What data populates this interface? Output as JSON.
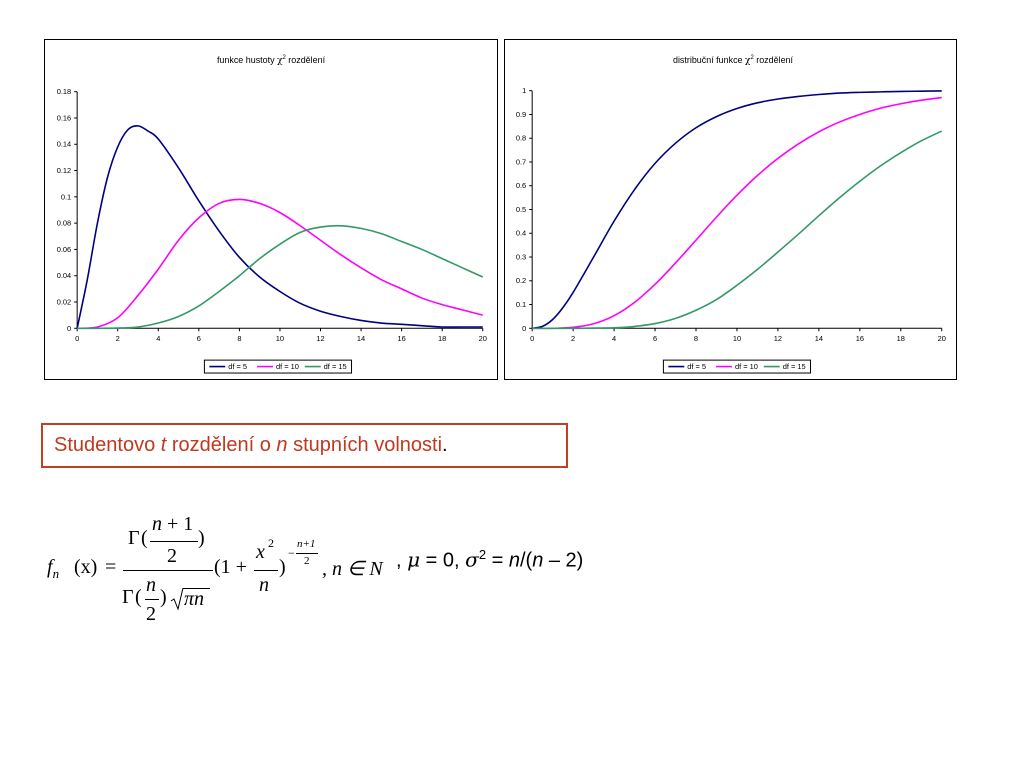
{
  "chart_data": [
    {
      "type": "line",
      "title": "funkce hustoty χ² rozdělení",
      "title_parts": [
        "funkce hustoty ",
        "χ",
        "2",
        " rozdělení"
      ],
      "xlim": [
        0,
        20
      ],
      "ylim": [
        0,
        0.18
      ],
      "xticks": [
        "0",
        "2",
        "4",
        "6",
        "8",
        "10",
        "12",
        "14",
        "16",
        "18",
        "20"
      ],
      "yticks": [
        "0",
        "0.02",
        "0.04",
        "0.06",
        "0.08",
        "0.1",
        "0.12",
        "0.14",
        "0.16",
        "0.18"
      ],
      "legend_position": "bottom",
      "series": [
        {
          "name": "df = 5",
          "color": "#000080",
          "x": [
            0,
            0.5,
            1,
            1.5,
            2,
            2.5,
            3,
            3.5,
            4,
            5,
            6,
            7,
            8,
            9,
            10,
            11,
            12,
            13,
            14,
            15,
            16,
            17,
            18,
            19,
            20
          ],
          "values": [
            0,
            0.037,
            0.08,
            0.115,
            0.138,
            0.151,
            0.154,
            0.15,
            0.144,
            0.122,
            0.097,
            0.074,
            0.054,
            0.039,
            0.028,
            0.019,
            0.013,
            0.009,
            0.006,
            0.004,
            0.003,
            0.002,
            0.001,
            0.001,
            0.001
          ]
        },
        {
          "name": "df = 10",
          "color": "#ff00ff",
          "x": [
            0,
            1,
            2,
            3,
            4,
            5,
            6,
            7,
            8,
            9,
            10,
            11,
            12,
            13,
            14,
            15,
            16,
            17,
            18,
            19,
            20
          ],
          "values": [
            0,
            0.001,
            0.008,
            0.025,
            0.045,
            0.067,
            0.084,
            0.095,
            0.098,
            0.095,
            0.088,
            0.078,
            0.067,
            0.056,
            0.046,
            0.037,
            0.03,
            0.023,
            0.018,
            0.014,
            0.01
          ]
        },
        {
          "name": "df = 15",
          "color": "#339966",
          "x": [
            0,
            2,
            3,
            4,
            5,
            6,
            7,
            8,
            9,
            10,
            11,
            12,
            13,
            14,
            15,
            16,
            17,
            18,
            19,
            20
          ],
          "values": [
            0,
            0.0002,
            0.001,
            0.004,
            0.009,
            0.017,
            0.028,
            0.04,
            0.053,
            0.064,
            0.073,
            0.077,
            0.078,
            0.076,
            0.072,
            0.066,
            0.06,
            0.053,
            0.046,
            0.039
          ]
        }
      ]
    },
    {
      "type": "line",
      "title": "distribuční funkce χ² rozdělení",
      "title_parts": [
        "distribuční funkce ",
        "χ",
        "2",
        " rozdělení"
      ],
      "xlim": [
        0,
        20
      ],
      "ylim": [
        0,
        1
      ],
      "xticks": [
        "0",
        "2",
        "4",
        "6",
        "8",
        "10",
        "12",
        "14",
        "16",
        "18",
        "20"
      ],
      "yticks": [
        "0",
        "0.1",
        "0.2",
        "0.3",
        "0.4",
        "0.5",
        "0.6",
        "0.7",
        "0.8",
        "0.9",
        "1"
      ],
      "legend_position": "bottom",
      "series": [
        {
          "name": "df = 5",
          "color": "#000080",
          "x": [
            0,
            0.5,
            1,
            1.5,
            2,
            3,
            4,
            5,
            6,
            7,
            8,
            9,
            10,
            11,
            12,
            13,
            14,
            15,
            16,
            17,
            18,
            19,
            20
          ],
          "values": [
            0,
            0.008,
            0.037,
            0.087,
            0.151,
            0.3,
            0.451,
            0.584,
            0.694,
            0.779,
            0.844,
            0.891,
            0.925,
            0.949,
            0.965,
            0.976,
            0.984,
            0.99,
            0.993,
            0.995,
            0.997,
            0.998,
            0.999
          ]
        },
        {
          "name": "df = 10",
          "color": "#ff00ff",
          "x": [
            0,
            1,
            2,
            3,
            4,
            5,
            6,
            7,
            8,
            9,
            10,
            11,
            12,
            13,
            14,
            15,
            16,
            17,
            18,
            19,
            20
          ],
          "values": [
            0,
            0.0,
            0.004,
            0.019,
            0.053,
            0.109,
            0.185,
            0.275,
            0.371,
            0.468,
            0.56,
            0.643,
            0.715,
            0.776,
            0.827,
            0.868,
            0.9,
            0.926,
            0.945,
            0.96,
            0.971
          ]
        },
        {
          "name": "df = 15",
          "color": "#339966",
          "x": [
            0,
            2,
            3,
            4,
            5,
            6,
            7,
            8,
            9,
            10,
            11,
            12,
            13,
            14,
            15,
            16,
            17,
            18,
            19,
            20
          ],
          "values": [
            0,
            0.0,
            0.001,
            0.002,
            0.008,
            0.02,
            0.042,
            0.076,
            0.121,
            0.181,
            0.248,
            0.321,
            0.396,
            0.474,
            0.549,
            0.619,
            0.683,
            0.739,
            0.789,
            0.83
          ]
        }
      ]
    }
  ],
  "caption": {
    "part1": "Studentovo ",
    "t": "t",
    "part2": " rozdělení o ",
    "n": "n",
    "part3": " stupních volnosti",
    "period": "."
  },
  "formula": {
    "f": "f",
    "n_sub": "n",
    "x_arg": "(x)",
    "equals": "=",
    "gamma": "Γ",
    "open_paren": "(",
    "close_paren": ")",
    "num_top": "n",
    "plus": "+",
    "one": "1",
    "two": "2",
    "den_n": "n",
    "pi_n": "πn",
    "one_plus": "(1 +",
    "x2": "x",
    "sq": "2",
    "n_frac": "n",
    "exp_minus": "−",
    "exp_top": "n+1",
    "exp_bottom": "2",
    "tail": ", n ∈ N"
  },
  "params": {
    "lead": ", ",
    "mu": "μ",
    "eq_mu": " = 0,  ",
    "sigma": "σ",
    "sigma_sq": "2",
    "eq": " = ",
    "n1": "n",
    "slash": "/(",
    "n2": "n",
    "tail": " – 2)"
  }
}
